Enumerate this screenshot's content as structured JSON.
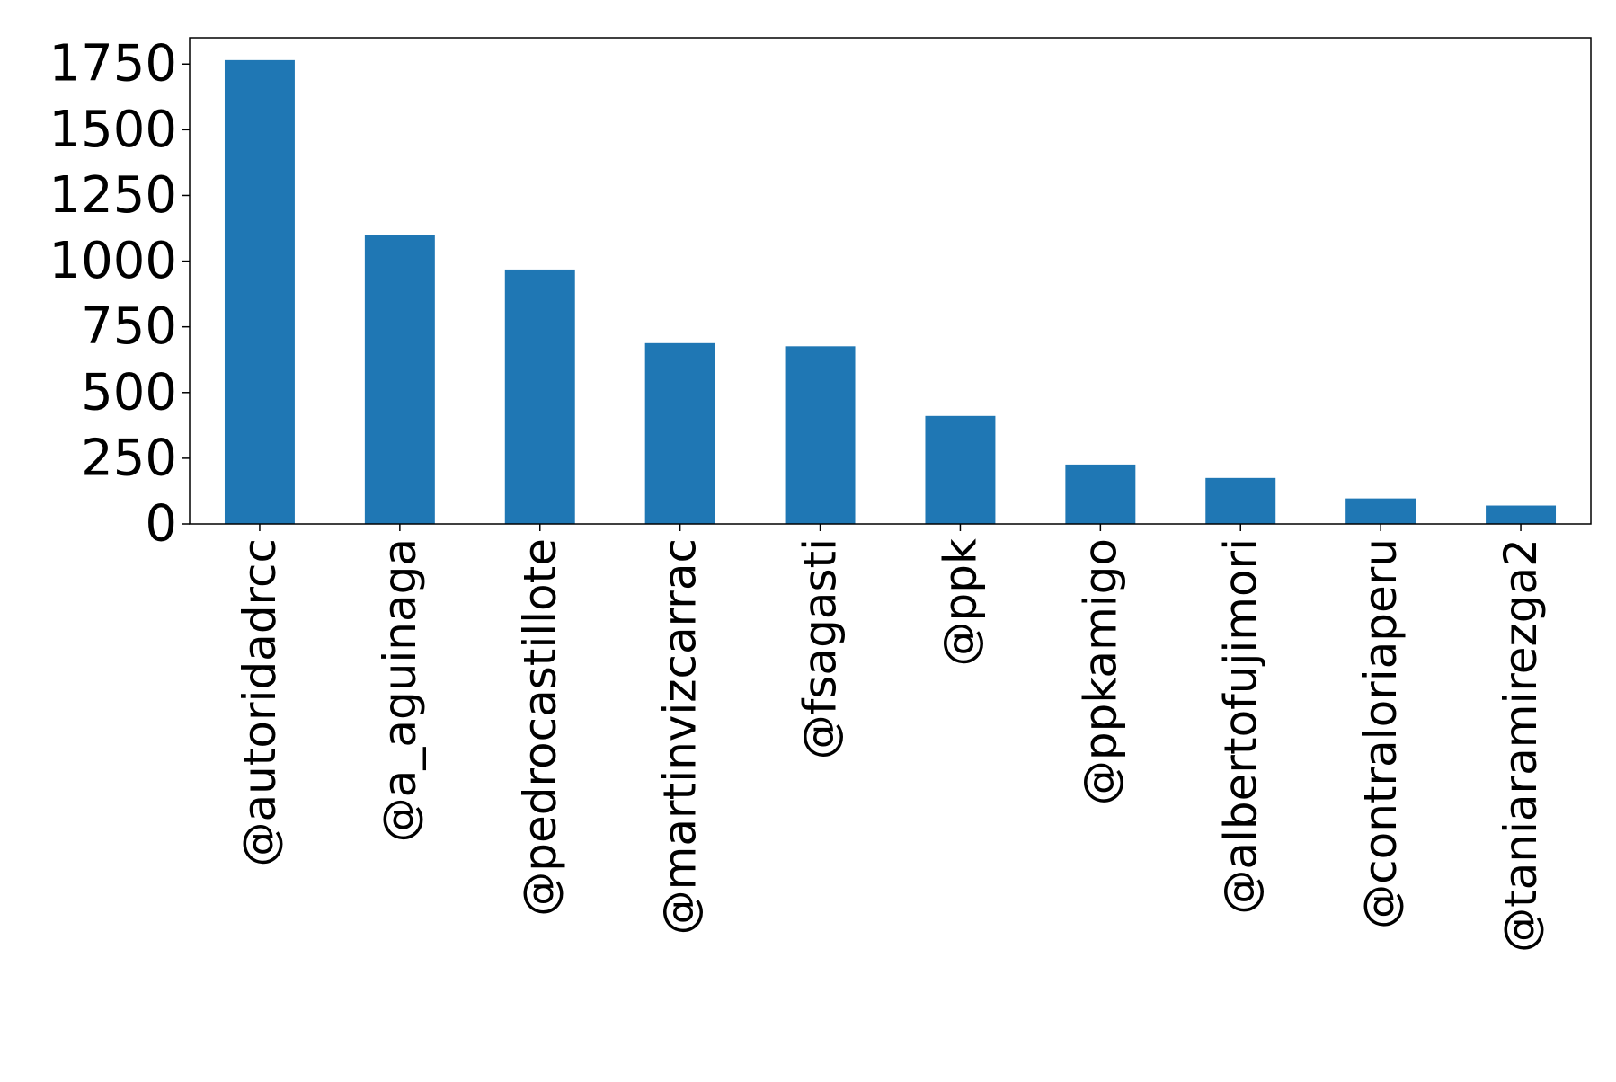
{
  "chart_data": {
    "type": "bar",
    "title": "",
    "xlabel": "",
    "ylabel": "",
    "categories": [
      "@autoridadrcc",
      "@a_aguinaga",
      "@pedrocastillote",
      "@martinvizcarrac",
      "@fsagasti",
      "@ppk",
      "@ppkamigo",
      "@albertofujimori",
      "@contraloriaperu",
      "@taniaramirezga2"
    ],
    "values": [
      1765,
      1101,
      968,
      688,
      676,
      411,
      226,
      175,
      97,
      70
    ],
    "ylim": [
      0,
      1850
    ],
    "yticks": [
      0,
      250,
      500,
      750,
      1000,
      1250,
      1500,
      1750
    ],
    "ytick_labels": [
      "0",
      "250",
      "500",
      "750",
      "1000",
      "1250",
      "1500",
      "1750"
    ],
    "bar_color": "#1f77b4",
    "grid": false,
    "legend": "none"
  }
}
